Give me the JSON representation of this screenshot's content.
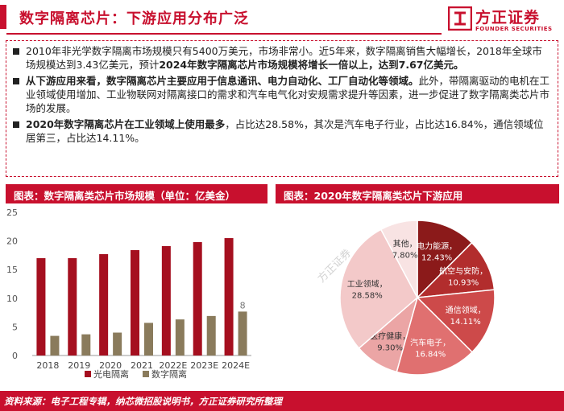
{
  "header": {
    "title": "数字隔离芯片：下游应用分布广泛",
    "logo_cn": "方正证券",
    "logo_en": "FOUNDER SECURITIES"
  },
  "summary": {
    "bullets": [
      {
        "segments": [
          {
            "text": "2010年非光学数字隔离市场规模只有5400万美元，市场非常小。近5年来，数字隔离销售大幅增长，2018年全球市场规模达到3.43亿美元，预计",
            "bold": false
          },
          {
            "text": "2024年数字隔离芯片市场规模将增长一倍以上，达到7.67亿美元。",
            "bold": true
          }
        ]
      },
      {
        "segments": [
          {
            "text": "从下游应用来看，数字隔离芯片主要应用于信息通讯、电力自动化、工厂自动化等领域。",
            "bold": true
          },
          {
            "text": "此外，带隔离驱动的电机在工业领域使用增加、工业物联网对隔离接口的需求和汽车电气化对安规需求提升等因素，进一步促进了数字隔离类芯片市场的发展。",
            "bold": false
          }
        ]
      },
      {
        "segments": [
          {
            "text": "2020年数字隔离芯片在工业领域上使用最多",
            "bold": true
          },
          {
            "text": "，占比达28.58%，其次是汽车电子行业，占比达16.84%，通信领域位居第三，占比达14.11%。",
            "bold": false
          }
        ]
      }
    ]
  },
  "left_panel_title": "图表：数字隔离类芯片市场规模（单位：亿美金）",
  "right_panel_title": "图表：2020年数字隔离类芯片下游应用",
  "watermark": "方正证券",
  "footer": "资料来源：电子工程专辑，纳芯微招股说明书，方正证券研究所整理",
  "chart_data": [
    {
      "type": "bar",
      "categories": [
        "2018",
        "2019",
        "2020",
        "2021",
        "2022E",
        "2023E",
        "2024E"
      ],
      "series": [
        {
          "name": "光电隔离",
          "values": [
            17.0,
            17.0,
            17.7,
            18.4,
            19.1,
            19.8,
            20.5
          ],
          "color": "#a50f1f"
        },
        {
          "name": "数字隔离",
          "values": [
            3.43,
            3.7,
            4.0,
            5.7,
            6.3,
            6.9,
            7.67
          ],
          "color": "#8a7b5c"
        }
      ],
      "data_labels": [
        {
          "series": 1,
          "index": 6,
          "text": "8"
        }
      ],
      "ylim": [
        0,
        25
      ],
      "yticks": [
        0,
        5,
        10,
        15,
        20,
        25
      ],
      "grid": false,
      "legend": "bottom"
    },
    {
      "type": "pie",
      "slices": [
        {
          "label": "电力能源，",
          "value": 12.43,
          "pct": "12.43%",
          "color": "#8b1a1a"
        },
        {
          "label": "航空与安防，",
          "value": 10.93,
          "pct": "10.93%",
          "color": "#b22d2d"
        },
        {
          "label": "通信领域，",
          "value": 14.11,
          "pct": "14.11%",
          "color": "#cd4a4a"
        },
        {
          "label": "汽车电子，",
          "value": 16.84,
          "pct": "16.84%",
          "color": "#e07070"
        },
        {
          "label": "医疗健康，",
          "value": 9.3,
          "pct": "9.30%",
          "color": "#eba5a5"
        },
        {
          "label": "工业领域，",
          "value": 28.58,
          "pct": "28.58%",
          "color": "#f3c9c9"
        },
        {
          "label": "其他，",
          "value": 7.8,
          "pct": "7.80%",
          "color": "#f8e3e3"
        }
      ]
    }
  ]
}
